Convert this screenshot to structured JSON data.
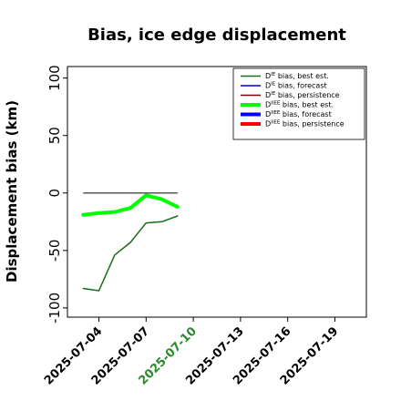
{
  "chart_data": {
    "type": "line",
    "title": "Bias, ice edge displacement",
    "ylabel": "Displacement bias (km)",
    "xlabel": "",
    "xlim": [
      "2025-07-02",
      "2025-07-21"
    ],
    "ylim": [
      -108,
      110
    ],
    "yticks": [
      100,
      50,
      0,
      -50,
      -100
    ],
    "xticks": [
      {
        "date": "2025-07-04",
        "label": "2025-07-04",
        "color": "#000000"
      },
      {
        "date": "2025-07-07",
        "label": "2025-07-07",
        "color": "#000000"
      },
      {
        "date": "2025-07-10",
        "label": "2025-07-10",
        "color": "#2a8a2a"
      },
      {
        "date": "2025-07-13",
        "label": "2025-07-13",
        "color": "#000000"
      },
      {
        "date": "2025-07-16",
        "label": "2025-07-16",
        "color": "#000000"
      },
      {
        "date": "2025-07-19",
        "label": "2025-07-19",
        "color": "#000000"
      }
    ],
    "legend_position": "top-right",
    "series": [
      {
        "name": "D^IE bias, best est.",
        "color": "#1a6b1a",
        "width": 1.5,
        "x": [
          "2025-07-03",
          "2025-07-04",
          "2025-07-05",
          "2025-07-06",
          "2025-07-07",
          "2025-07-08",
          "2025-07-09"
        ],
        "y": [
          -83,
          -85,
          -54,
          -43,
          -26,
          -25,
          -20
        ]
      },
      {
        "name": "D^IE bias, forecast",
        "color": "#0000cc",
        "width": 1.5,
        "x": [],
        "y": []
      },
      {
        "name": "D^IE bias, persistence",
        "color": "#800000",
        "width": 1.5,
        "x": [],
        "y": []
      },
      {
        "name": "D^IIEE bias, best est.",
        "color": "#00ff00",
        "width": 4,
        "x": [
          "2025-07-03",
          "2025-07-04",
          "2025-07-05",
          "2025-07-06",
          "2025-07-07",
          "2025-07-08",
          "2025-07-09"
        ],
        "y": [
          -19,
          -17.5,
          -16.5,
          -13,
          -2,
          -5.5,
          -12
        ]
      },
      {
        "name": "D^IIEE bias, forecast",
        "color": "#0000ff",
        "width": 4,
        "x": [],
        "y": []
      },
      {
        "name": "D^IIEE bias, persistence",
        "color": "#ff0000",
        "width": 4,
        "x": [],
        "y": []
      }
    ],
    "reference_lines": [
      {
        "x": [
          "2025-07-03",
          "2025-07-09"
        ],
        "y": [
          0,
          0
        ],
        "color": "#555555"
      }
    ]
  }
}
